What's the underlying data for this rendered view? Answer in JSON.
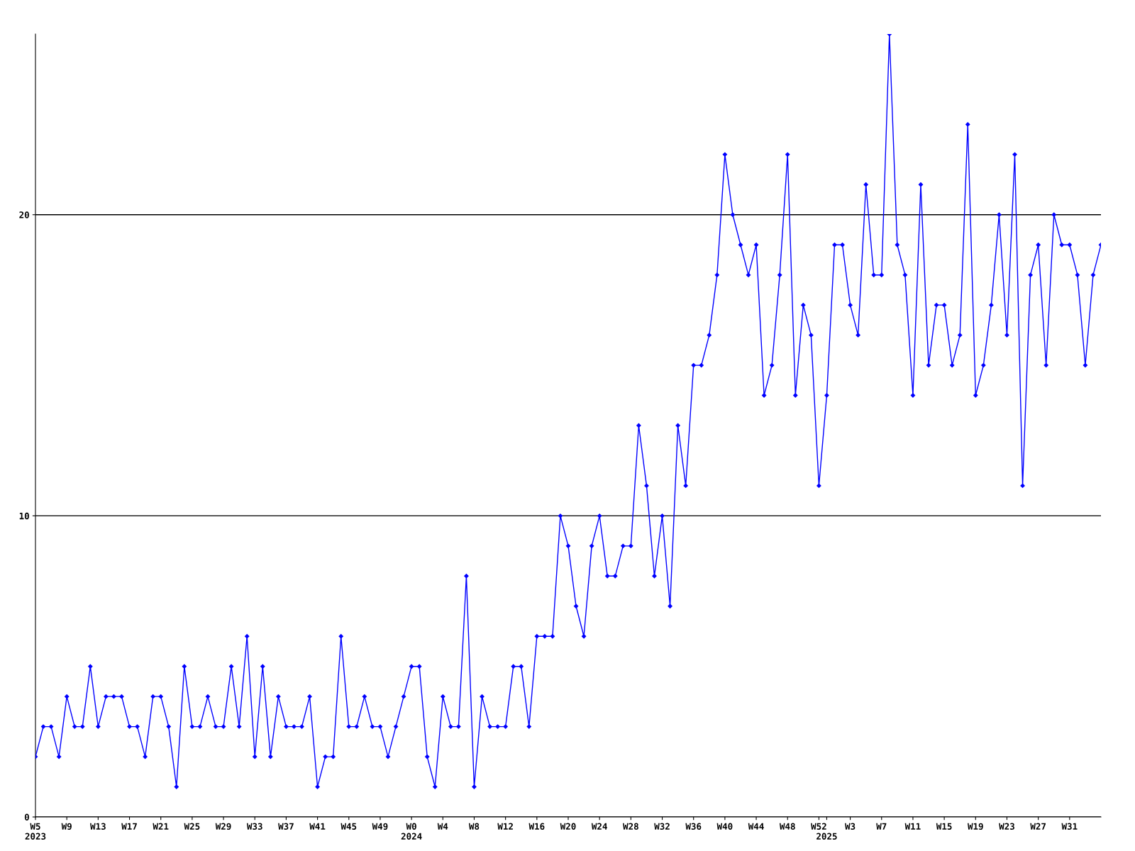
{
  "chart_data": {
    "type": "line",
    "categories": [
      "W5\n2023",
      null,
      null,
      null,
      "W9",
      null,
      null,
      null,
      "W13",
      null,
      null,
      null,
      "W17",
      null,
      null,
      null,
      "W21",
      null,
      null,
      null,
      "W25",
      null,
      null,
      null,
      "W29",
      null,
      null,
      null,
      "W33",
      null,
      null,
      null,
      "W37",
      null,
      null,
      null,
      "W41",
      null,
      null,
      null,
      "W45",
      null,
      null,
      null,
      "W49",
      null,
      null,
      null,
      "W0\n2024",
      null,
      null,
      null,
      "W4",
      null,
      null,
      null,
      "W8",
      null,
      null,
      null,
      "W12",
      null,
      null,
      null,
      "W16",
      null,
      null,
      null,
      "W20",
      null,
      null,
      null,
      "W24",
      null,
      null,
      null,
      "W28",
      null,
      null,
      null,
      "W32",
      null,
      null,
      null,
      "W36",
      null,
      null,
      null,
      "W40",
      null,
      null,
      null,
      "W44",
      null,
      null,
      null,
      "W48",
      null,
      null,
      null,
      "W52",
      "\n2025",
      null,
      null,
      "W3",
      null,
      null,
      null,
      "W7",
      null,
      null,
      null,
      "W11",
      null,
      null,
      null,
      "W15",
      null,
      null,
      null,
      "W19",
      null,
      null,
      null,
      "W23",
      null,
      null,
      null,
      "W27",
      null,
      null,
      null,
      "W31",
      null,
      null,
      null,
      null
    ],
    "series": [
      {
        "color": "#0000ff",
        "values": [
          2,
          3,
          3,
          2,
          4,
          3,
          3,
          5,
          3,
          4,
          4,
          4,
          3,
          3,
          2,
          4,
          4,
          3,
          1,
          5,
          3,
          3,
          4,
          3,
          3,
          5,
          3,
          6,
          2,
          5,
          2,
          4,
          3,
          3,
          3,
          4,
          1,
          2,
          2,
          6,
          3,
          3,
          4,
          3,
          3,
          2,
          3,
          4,
          5,
          5,
          2,
          1,
          4,
          3,
          3,
          8,
          1,
          4,
          3,
          3,
          3,
          5,
          5,
          3,
          6,
          6,
          6,
          10,
          9,
          7,
          6,
          9,
          10,
          8,
          8,
          9,
          9,
          13,
          11,
          8,
          10,
          7,
          13,
          11,
          15,
          15,
          16,
          18,
          22,
          20,
          19,
          18,
          19,
          14,
          15,
          18,
          22,
          14,
          17,
          16,
          11,
          14,
          19,
          19,
          17,
          16,
          21,
          18,
          18,
          26,
          19,
          18,
          14,
          21,
          15,
          17,
          17,
          15,
          16,
          23,
          14,
          15,
          17,
          20,
          16,
          22,
          11,
          18,
          19,
          15,
          20,
          19,
          19,
          18,
          15,
          18,
          19
        ]
      }
    ],
    "ylim": [
      0,
      26
    ],
    "yticks": [
      0,
      10,
      20
    ],
    "grid": "y",
    "marker": "diamond",
    "line_style": "solid",
    "legend": false
  }
}
